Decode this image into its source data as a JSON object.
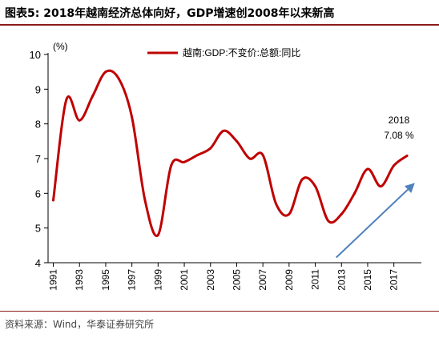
{
  "header": {
    "title": "图表5:  2018年越南经济总体向好，GDP增速创2008年以来新高"
  },
  "footer": {
    "source": "资料来源：Wind，华泰证券研究所"
  },
  "chart_data": {
    "type": "line",
    "ylabel": "(%)",
    "ylim": [
      4,
      10
    ],
    "yticks": [
      4,
      5,
      6,
      7,
      8,
      9,
      10
    ],
    "xlim": [
      1990.6,
      2019.1
    ],
    "xticks": [
      1991,
      1993,
      1995,
      1997,
      1999,
      2001,
      2003,
      2005,
      2007,
      2009,
      2011,
      2013,
      2015,
      2017
    ],
    "grid": false,
    "legend_position": "top-right",
    "series": [
      {
        "name": "越南:GDP:不变价:总额:同比",
        "color": "#c00000",
        "x": [
          1991,
          1992,
          1993,
          1994,
          1995,
          1996,
          1997,
          1998,
          1999,
          2000,
          2001,
          2002,
          2003,
          2004,
          2005,
          2006,
          2007,
          2008,
          2009,
          2010,
          2011,
          2012,
          2013,
          2014,
          2015,
          2016,
          2017,
          2018
        ],
        "values": [
          5.8,
          8.7,
          8.1,
          8.8,
          9.5,
          9.3,
          8.2,
          5.8,
          4.8,
          6.8,
          6.9,
          7.1,
          7.3,
          7.8,
          7.5,
          7.0,
          7.1,
          5.7,
          5.4,
          6.4,
          6.2,
          5.2,
          5.4,
          6.0,
          6.7,
          6.2,
          6.8,
          7.08
        ]
      }
    ],
    "annotations": {
      "year": "2018",
      "value": "7.08 %",
      "arrow_color": "#4f81bd",
      "arrow": {
        "from": [
          2012.6,
          4.15
        ],
        "to": [
          2018.6,
          6.3
        ]
      }
    }
  }
}
